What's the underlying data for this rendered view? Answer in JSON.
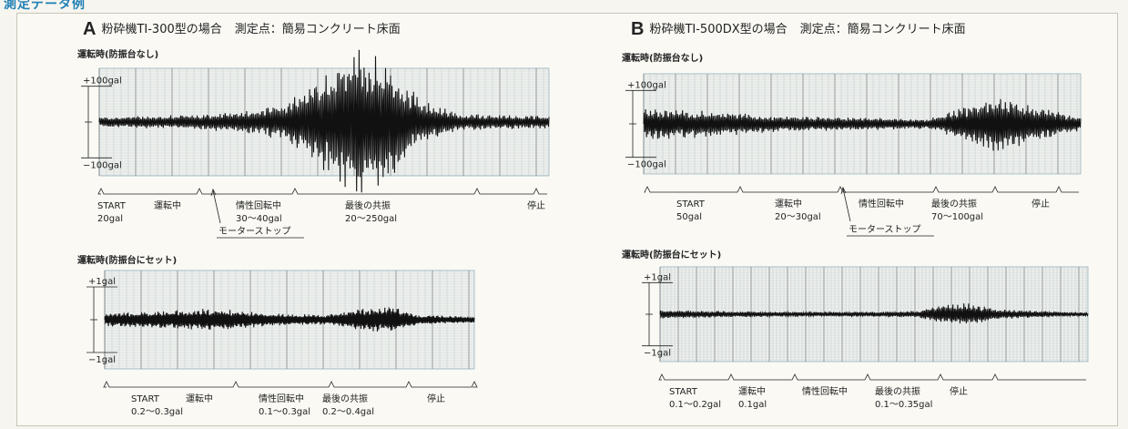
{
  "header": {
    "title": "測定データ例"
  },
  "colors": {
    "grid": "#7d9fb0",
    "grid_dense": "#8aa2a6",
    "trace": "#111111",
    "heading": "#1f7fb6"
  },
  "panels": [
    {
      "letter": "A",
      "title": "粉砕機TI-300型の場合",
      "measure": "測定点：簡易コンクリート床面",
      "chart_data": [
        {
          "type": "line",
          "subtitle": "運転時(防振台なし)",
          "yticks": [
            "+100gal",
            "−100gal"
          ],
          "ylim": [
            -150,
            150
          ],
          "grid": true,
          "envelope": {
            "x": [
              0,
              0.1,
              0.2,
              0.3,
              0.35,
              0.42,
              0.5,
              0.58,
              0.65,
              0.72,
              0.8,
              0.9,
              1
            ],
            "y": [
              15,
              18,
              20,
              30,
              35,
              60,
              140,
              220,
              160,
              60,
              25,
              20,
              18
            ]
          },
          "phases": [
            {
              "label": "START",
              "value": "20gal"
            },
            {
              "label": "運転中",
              "value": ""
            },
            {
              "label": "情性回転中",
              "value": "30〜40gal"
            },
            {
              "label": "最後の共振",
              "value": "20〜250gal"
            },
            {
              "label": "停止",
              "value": ""
            }
          ],
          "annotation": "モーターストップ"
        },
        {
          "type": "line",
          "subtitle": "運転時(防振台にセット)",
          "yticks": [
            "+1gal",
            "−1gal"
          ],
          "ylim": [
            -1.5,
            1.5
          ],
          "grid": true,
          "envelope": {
            "x": [
              0,
              0.1,
              0.2,
              0.3,
              0.45,
              0.6,
              0.7,
              0.78,
              0.85,
              1
            ],
            "y": [
              0.2,
              0.25,
              0.3,
              0.35,
              0.2,
              0.15,
              0.35,
              0.4,
              0.15,
              0.1
            ]
          },
          "phases": [
            {
              "label": "START",
              "value": "0.2〜0.3gal"
            },
            {
              "label": "運転中",
              "value": ""
            },
            {
              "label": "情性回転中",
              "value": "0.1〜0.3gal"
            },
            {
              "label": "最後の共振",
              "value": "0.2〜0.4gal"
            },
            {
              "label": "停止",
              "value": ""
            }
          ]
        }
      ]
    },
    {
      "letter": "B",
      "title": "粉砕機TI-500DX型の場合",
      "measure": "測定点：簡易コンクリート床面",
      "chart_data": [
        {
          "type": "line",
          "subtitle": "運転時(防振台なし)",
          "yticks": [
            "+100gal",
            "−100gal"
          ],
          "ylim": [
            -150,
            150
          ],
          "grid": true,
          "envelope": {
            "x": [
              0,
              0.15,
              0.3,
              0.5,
              0.65,
              0.75,
              0.8,
              0.85,
              1
            ],
            "y": [
              50,
              40,
              25,
              20,
              15,
              60,
              90,
              70,
              20
            ]
          },
          "phases": [
            {
              "label": "START",
              "value": "50gal"
            },
            {
              "label": "運転中",
              "value": "20〜30gal"
            },
            {
              "label": "情性回転中",
              "value": ""
            },
            {
              "label": "最後の共振",
              "value": "70〜100gal"
            },
            {
              "label": "停止",
              "value": ""
            }
          ],
          "annotation": "モーターストップ"
        },
        {
          "type": "line",
          "subtitle": "運転時(防振台にセット)",
          "yticks": [
            "+1gal",
            "−1gal"
          ],
          "ylim": [
            -1.5,
            1.5
          ],
          "grid": true,
          "envelope": {
            "x": [
              0,
              0.15,
              0.3,
              0.5,
              0.6,
              0.65,
              0.72,
              0.8,
              1
            ],
            "y": [
              0.15,
              0.1,
              0.08,
              0.08,
              0.1,
              0.3,
              0.35,
              0.15,
              0.05
            ]
          },
          "phases": [
            {
              "label": "START",
              "value": "0.1〜0.2gal"
            },
            {
              "label": "運転中",
              "value": "0.1gal"
            },
            {
              "label": "情性回転中",
              "value": ""
            },
            {
              "label": "最後の共振",
              "value": "0.1〜0.35gal"
            },
            {
              "label": "停止",
              "value": ""
            }
          ]
        }
      ]
    }
  ]
}
